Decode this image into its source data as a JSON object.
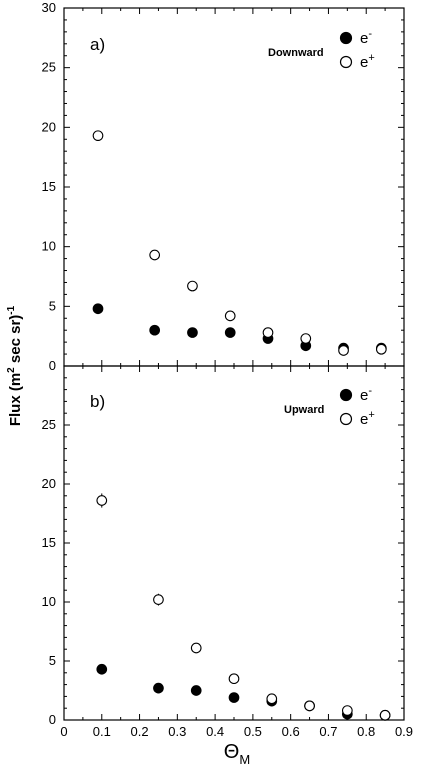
{
  "chart_data": [
    {
      "type": "scatter",
      "panel_label": "a)",
      "direction_label": "Downward",
      "xlim": [
        0,
        0.9
      ],
      "ylim": [
        0,
        30
      ],
      "x_ticks": [
        "0",
        "0.1",
        "0.2",
        "0.3",
        "0.4",
        "0.5",
        "0.6",
        "0.7",
        "0.8",
        "0.9"
      ],
      "y_ticks": [
        "0",
        "5",
        "10",
        "15",
        "20",
        "25",
        "30"
      ],
      "series": [
        {
          "name": "e-",
          "legend_base": "e",
          "legend_sup": "-",
          "marker": "filled-circle",
          "points": [
            {
              "x": 0.09,
              "y": 4.8
            },
            {
              "x": 0.24,
              "y": 3.0
            },
            {
              "x": 0.34,
              "y": 2.8
            },
            {
              "x": 0.44,
              "y": 2.8
            },
            {
              "x": 0.54,
              "y": 2.3
            },
            {
              "x": 0.64,
              "y": 1.7
            },
            {
              "x": 0.74,
              "y": 1.5
            },
            {
              "x": 0.84,
              "y": 1.5
            }
          ]
        },
        {
          "name": "e+",
          "legend_base": "e",
          "legend_sup": "+",
          "marker": "open-circle",
          "points": [
            {
              "x": 0.09,
              "y": 19.3
            },
            {
              "x": 0.24,
              "y": 9.3
            },
            {
              "x": 0.34,
              "y": 6.7
            },
            {
              "x": 0.44,
              "y": 4.2
            },
            {
              "x": 0.54,
              "y": 2.8
            },
            {
              "x": 0.64,
              "y": 2.3
            },
            {
              "x": 0.74,
              "y": 1.3
            },
            {
              "x": 0.84,
              "y": 1.4
            }
          ]
        }
      ]
    },
    {
      "type": "scatter",
      "panel_label": "b)",
      "direction_label": "Upward",
      "xlim": [
        0,
        0.9
      ],
      "ylim": [
        0,
        30
      ],
      "x_ticks": [
        "0",
        "0.1",
        "0.2",
        "0.3",
        "0.4",
        "0.5",
        "0.6",
        "0.7",
        "0.8",
        "0.9"
      ],
      "y_ticks": [
        "0",
        "5",
        "10",
        "15",
        "20",
        "25"
      ],
      "series": [
        {
          "name": "e-",
          "legend_base": "e",
          "legend_sup": "-",
          "marker": "filled-circle",
          "points": [
            {
              "x": 0.1,
              "y": 4.3
            },
            {
              "x": 0.25,
              "y": 2.7
            },
            {
              "x": 0.35,
              "y": 2.5
            },
            {
              "x": 0.45,
              "y": 1.9
            },
            {
              "x": 0.55,
              "y": 1.6
            },
            {
              "x": 0.65,
              "y": 1.2
            },
            {
              "x": 0.75,
              "y": 0.5
            },
            {
              "x": 0.85,
              "y": 0.4
            }
          ]
        },
        {
          "name": "e+",
          "legend_base": "e",
          "legend_sup": "+",
          "marker": "open-circle",
          "points": [
            {
              "x": 0.1,
              "y": 18.6,
              "err": 0.6
            },
            {
              "x": 0.25,
              "y": 10.2,
              "err": 0.5
            },
            {
              "x": 0.35,
              "y": 6.1
            },
            {
              "x": 0.45,
              "y": 3.5
            },
            {
              "x": 0.55,
              "y": 1.8
            },
            {
              "x": 0.65,
              "y": 1.2
            },
            {
              "x": 0.75,
              "y": 0.8
            },
            {
              "x": 0.85,
              "y": 0.4
            }
          ]
        }
      ]
    }
  ],
  "axes": {
    "xlabel_main": "Θ",
    "xlabel_sub": "M",
    "ylabel_pre": "Flux (m",
    "ylabel_sup1": "2",
    "ylabel_mid": " sec sr)",
    "ylabel_sup2": "-1"
  }
}
